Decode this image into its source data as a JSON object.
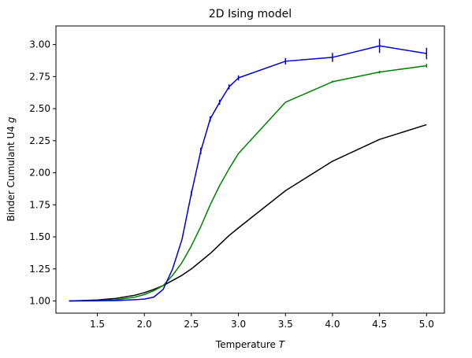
{
  "chart_data": {
    "type": "line",
    "title": "2D Ising model",
    "xlabel_main": "Temperature ",
    "xlabel_var": "T",
    "ylabel_main": "Binder Cumulant U4 ",
    "ylabel_var": "g",
    "xlim": [
      1.06,
      5.19
    ],
    "ylim": [
      0.905,
      3.145
    ],
    "x_ticks": [
      1.5,
      2.0,
      2.5,
      3.0,
      3.5,
      4.0,
      4.5,
      5.0
    ],
    "x_tick_labels": [
      "1.5",
      "2.0",
      "2.5",
      "3.0",
      "3.5",
      "4.0",
      "4.5",
      "5.0"
    ],
    "y_ticks": [
      1.0,
      1.25,
      1.5,
      1.75,
      2.0,
      2.25,
      2.5,
      2.75,
      3.0
    ],
    "y_tick_labels": [
      "1.00",
      "1.25",
      "1.50",
      "1.75",
      "2.00",
      "2.25",
      "2.50",
      "2.75",
      "3.00"
    ],
    "grid": false,
    "legend": "none",
    "series": [
      {
        "color": "#000000",
        "x": [
          1.2,
          1.5,
          1.7,
          1.9,
          2.0,
          2.1,
          2.2,
          2.3,
          2.4,
          2.5,
          2.6,
          2.7,
          2.8,
          2.9,
          3.0,
          3.5,
          4.0,
          4.5,
          5.0
        ],
        "y": [
          1.0,
          1.008,
          1.02,
          1.045,
          1.065,
          1.09,
          1.12,
          1.16,
          1.2,
          1.25,
          1.31,
          1.37,
          1.44,
          1.51,
          1.57,
          1.86,
          2.09,
          2.26,
          2.375
        ],
        "err": [
          0,
          0,
          0,
          0,
          0,
          0,
          0,
          0,
          0,
          0,
          0,
          0,
          0,
          0,
          0,
          0,
          0,
          0,
          0
        ]
      },
      {
        "color": "#008000",
        "x": [
          1.2,
          1.5,
          1.7,
          1.9,
          2.0,
          2.1,
          2.2,
          2.3,
          2.4,
          2.5,
          2.6,
          2.7,
          2.8,
          2.9,
          3.0,
          3.5,
          4.0,
          4.5,
          5.0
        ],
        "y": [
          1.0,
          1.004,
          1.01,
          1.03,
          1.05,
          1.08,
          1.12,
          1.2,
          1.3,
          1.43,
          1.58,
          1.75,
          1.9,
          2.03,
          2.15,
          2.55,
          2.71,
          2.785,
          2.835
        ],
        "err": [
          0,
          0,
          0,
          0,
          0,
          0,
          0,
          0,
          0,
          0,
          0,
          0,
          0,
          0,
          0,
          0,
          0.008,
          0.01,
          0.015
        ]
      },
      {
        "color": "#0000cc",
        "x": [
          1.2,
          1.5,
          1.7,
          1.9,
          2.0,
          2.1,
          2.2,
          2.3,
          2.4,
          2.5,
          2.6,
          2.7,
          2.8,
          2.9,
          3.0,
          3.5,
          4.0,
          4.5,
          5.0
        ],
        "y": [
          1.0,
          1.001,
          1.003,
          1.01,
          1.015,
          1.03,
          1.09,
          1.25,
          1.48,
          1.84,
          2.17,
          2.42,
          2.55,
          2.67,
          2.74,
          2.87,
          2.9,
          2.99,
          2.93
        ],
        "err": [
          0,
          0,
          0,
          0,
          0,
          0,
          0,
          0,
          0,
          0.02,
          0.025,
          0.02,
          0.02,
          0.02,
          0.02,
          0.025,
          0.035,
          0.055,
          0.045
        ]
      }
    ]
  }
}
